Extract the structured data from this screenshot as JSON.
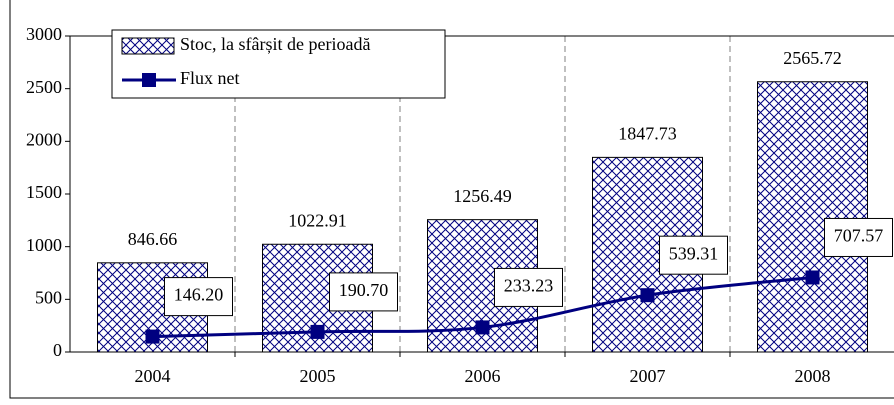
{
  "chart_data": {
    "type": "bar",
    "categories": [
      "2004",
      "2005",
      "2006",
      "2007",
      "2008"
    ],
    "series": [
      {
        "name": "Stoc, la sfârșit de perioadă",
        "type": "bar",
        "color": "#000080",
        "values": [
          846.66,
          1022.91,
          1256.49,
          1847.73,
          2565.72
        ]
      },
      {
        "name": "Flux net",
        "type": "line",
        "color": "#000080",
        "values": [
          146.2,
          190.7,
          233.23,
          539.31,
          707.57
        ],
        "value_labels": [
          "146.20",
          "190.70",
          "233.23",
          "539.31",
          "707.57"
        ]
      }
    ],
    "ylim": [
      0,
      3000
    ],
    "yticks": [
      0,
      500,
      1000,
      1500,
      2000,
      2500,
      3000
    ],
    "grid": true,
    "legend": "top-left"
  }
}
